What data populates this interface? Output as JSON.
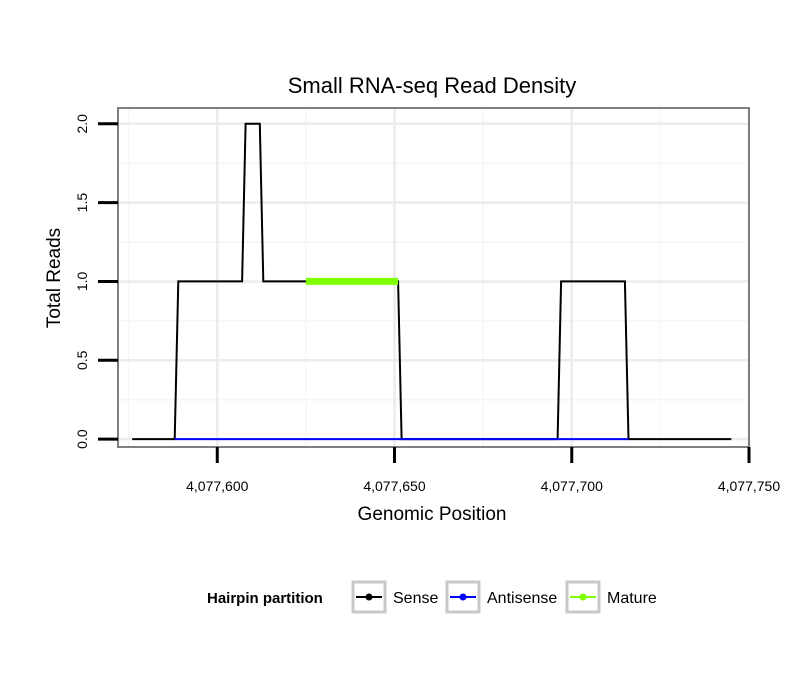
{
  "chart_data": {
    "type": "line",
    "title": "Small RNA-seq Read Density",
    "xlabel": "Genomic Position",
    "ylabel": "Total Reads",
    "xlim": [
      4077572,
      4077750
    ],
    "ylim": [
      -0.05,
      2.1
    ],
    "x_ticks": [
      4077600,
      4077650,
      4077700,
      4077750
    ],
    "x_tick_labels": [
      "4,077,600",
      "4,077,650",
      "4,077,700",
      "4,077,750"
    ],
    "y_ticks": [
      0,
      0.5,
      1,
      1.5,
      2
    ],
    "y_tick_labels": [
      "0.0",
      "0.5",
      "1.0",
      "1.5",
      "2.0"
    ],
    "grid": true,
    "series": [
      {
        "name": "Sense",
        "color": "#000000",
        "x": [
          4077576,
          4077588,
          4077589,
          4077607,
          4077608,
          4077612,
          4077613,
          4077651,
          4077652,
          4077696,
          4077697,
          4077715,
          4077716,
          4077745
        ],
        "y": [
          0,
          0,
          1,
          1,
          2,
          2,
          1,
          1,
          0,
          0,
          1,
          1,
          0,
          0
        ]
      },
      {
        "name": "Antisense",
        "color": "#0000ff",
        "x": [
          4077588,
          4077716
        ],
        "y": [
          0,
          0
        ]
      },
      {
        "name": "Mature",
        "color": "#7fff00",
        "x": [
          4077625,
          4077651
        ],
        "y": [
          1,
          1
        ]
      }
    ],
    "legend": {
      "title": "Hairpin partition",
      "placement": "bottom",
      "entries": [
        "Sense",
        "Antisense",
        "Mature"
      ]
    }
  }
}
